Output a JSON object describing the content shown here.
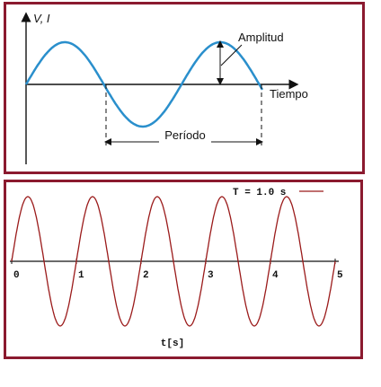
{
  "chart_data": [
    {
      "type": "line",
      "title": "",
      "ylabel": "V, I",
      "xlabel": "Tiempo",
      "annotations": [
        "Amplitud",
        "Período"
      ],
      "series": [
        {
          "x": [
            0,
            0.25,
            0.5,
            0.75,
            1.0,
            1.25,
            1.5,
            1.75
          ],
          "values": [
            0,
            1,
            0,
            -1,
            0,
            1,
            0,
            -1
          ]
        }
      ],
      "color": "#2a8fcc",
      "grid": false
    },
    {
      "type": "line",
      "title": "",
      "xlabel": "t[s]",
      "legend": {
        "label": "T = 1.0 s",
        "placement": "top-right"
      },
      "period": 1.0,
      "x": [
        0,
        1,
        2,
        3,
        4,
        5
      ],
      "xticks": [
        "0",
        "1",
        "2",
        "3",
        "4",
        "5"
      ],
      "xlim": [
        0,
        5
      ],
      "ylim": [
        -1,
        1
      ],
      "series": [
        {
          "name": "T = 1.0 s",
          "x": [
            0,
            0.25,
            0.5,
            0.75,
            1,
            1.25,
            1.5,
            1.75,
            2,
            2.25,
            2.5,
            2.75,
            3,
            3.25,
            3.5,
            3.75,
            4,
            4.25,
            4.5,
            4.75,
            5
          ],
          "values": [
            0,
            1,
            0,
            -1,
            0,
            1,
            0,
            -1,
            0,
            1,
            0,
            -1,
            0,
            1,
            0,
            -1,
            0,
            1,
            0,
            -1,
            0
          ]
        }
      ],
      "color": "#9b1b1b",
      "grid": false
    }
  ]
}
